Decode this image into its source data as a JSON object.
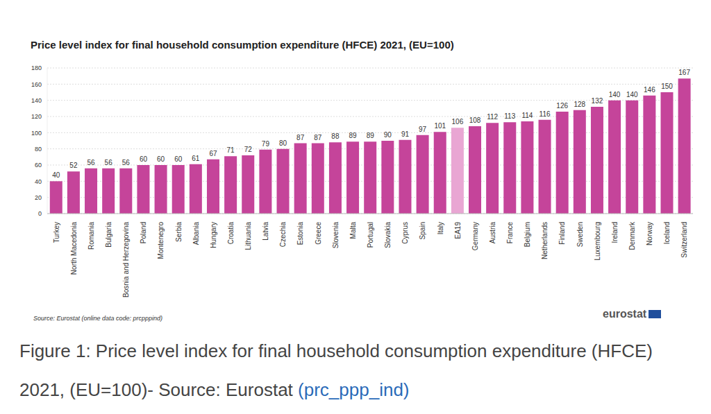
{
  "chart_data": {
    "type": "bar",
    "title": "Price level index for final household consumption expenditure (HFCE) 2021, (EU=100)",
    "source": "Source: Eurostat (online data code: prcpppind)",
    "logo": "eurostat",
    "caption": "Figure 1: Price level index for final household consumption expenditure (HFCE) 2021, (EU=100)- Source: Eurostat",
    "caption_link": "(prc_ppp_ind)",
    "categories": [
      "Turkey",
      "North Macedonia",
      "Romania",
      "Bulgaria",
      "Bosnia and Herzegovina",
      "Poland",
      "Montenegro",
      "Serbia",
      "Albania",
      "Hungary",
      "Croatia",
      "Lithuania",
      "Latvia",
      "Czechia",
      "Estonia",
      "Greece",
      "Slovenia",
      "Malta",
      "Portugal",
      "Slovakia",
      "Cyprus",
      "Spain",
      "Italy",
      "EA19",
      "Germany",
      "Austria",
      "France",
      "Belgium",
      "Netherlands",
      "Finland",
      "Sweden",
      "Luxembourg",
      "Ireland",
      "Denmark",
      "Norway",
      "Iceland",
      "Switzerland"
    ],
    "values": [
      40,
      52,
      56,
      56,
      56,
      60,
      60,
      60,
      61,
      67,
      71,
      72,
      79,
      80,
      87,
      87,
      88,
      89,
      89,
      90,
      91,
      97,
      101,
      106,
      108,
      112,
      113,
      114,
      116,
      126,
      128,
      132,
      140,
      140,
      146,
      150,
      167
    ],
    "colors": [
      "#c5449a",
      "#c5449a",
      "#c5449a",
      "#c5449a",
      "#c5449a",
      "#c5449a",
      "#c5449a",
      "#c5449a",
      "#c5449a",
      "#c5449a",
      "#c5449a",
      "#c5449a",
      "#c5449a",
      "#c5449a",
      "#c5449a",
      "#c5449a",
      "#c5449a",
      "#c5449a",
      "#c5449a",
      "#c5449a",
      "#c5449a",
      "#c5449a",
      "#c5449a",
      "#e9a6d3",
      "#c5449a",
      "#c5449a",
      "#c5449a",
      "#c5449a",
      "#c5449a",
      "#c5449a",
      "#c5449a",
      "#c5449a",
      "#c5449a",
      "#c5449a",
      "#c5449a",
      "#c5449a",
      "#c5449a"
    ],
    "ylim": [
      0,
      180
    ],
    "yticks": [
      0,
      20,
      40,
      60,
      80,
      100,
      120,
      140,
      160,
      180
    ],
    "grid": true,
    "data_labels": true
  }
}
